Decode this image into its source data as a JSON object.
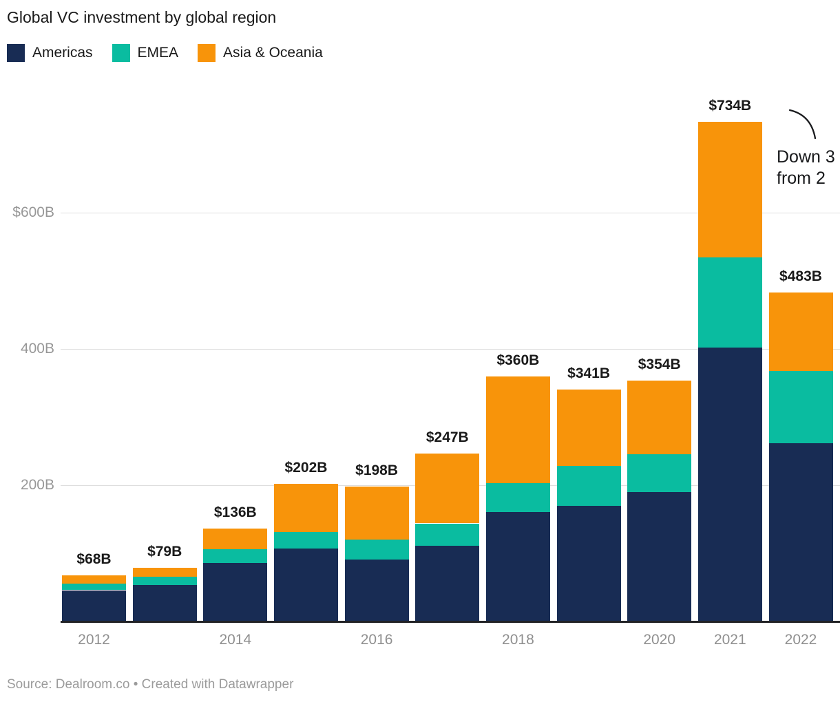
{
  "title": "Global VC investment by global region",
  "chart_data": {
    "type": "bar",
    "stacked": true,
    "title": "Global VC investment by global region",
    "categories": [
      "2012",
      "2013",
      "2014",
      "2015",
      "2016",
      "2017",
      "2018",
      "2019",
      "2020",
      "2021",
      "2022"
    ],
    "series": [
      {
        "name": "Americas",
        "color": "#182c54",
        "values": [
          46,
          54,
          86,
          107,
          91,
          111,
          161,
          170,
          190,
          402,
          262
        ]
      },
      {
        "name": "EMEA",
        "color": "#0abca0",
        "values": [
          10,
          12,
          20,
          24,
          29,
          33,
          42,
          58,
          56,
          133,
          106
        ]
      },
      {
        "name": "Asia & Oceania",
        "color": "#f8940a",
        "values": [
          12,
          13,
          30,
          71,
          78,
          103,
          157,
          113,
          108,
          199,
          115
        ]
      }
    ],
    "totals": [
      68,
      79,
      136,
      202,
      198,
      247,
      360,
      341,
      354,
      734,
      483
    ],
    "total_labels": [
      "$68B",
      "$79B",
      "$136B",
      "$202B",
      "$198B",
      "$247B",
      "$360B",
      "$341B",
      "$354B",
      "$734B",
      "$483B"
    ],
    "y_ticks": [
      {
        "label": "$600B",
        "value": 600
      },
      {
        "label": "400B",
        "value": 400
      },
      {
        "label": "200B",
        "value": 200
      }
    ],
    "x_tick_labels": [
      "2012",
      "2014",
      "2016",
      "2018",
      "2020",
      "2021",
      "2022"
    ],
    "ylim": [
      0,
      760
    ],
    "grid": "horizontal",
    "legend_position": "top"
  },
  "annotation": {
    "line1": "Down 3",
    "line2": "from 2"
  },
  "footer": "Source: Dealroom.co • Created with Datawrapper"
}
